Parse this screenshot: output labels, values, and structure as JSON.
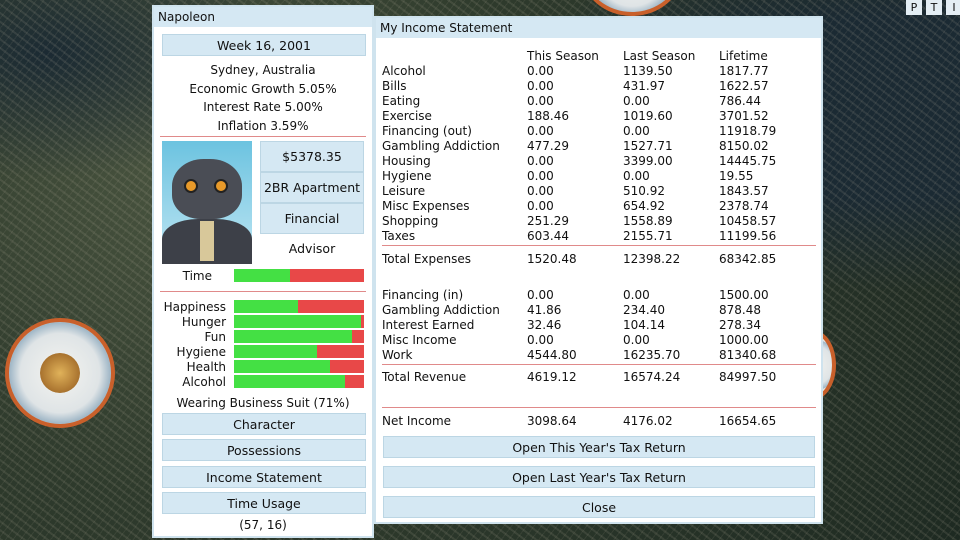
{
  "top_buttons": [
    "P",
    "T",
    "I"
  ],
  "character_panel": {
    "name": "Napoleon",
    "date": "Week 16, 2001",
    "location": "Sydney, Australia",
    "economic_growth": "Economic Growth 5.05%",
    "interest_rate": "Interest Rate 5.00%",
    "inflation": "Inflation 3.59%",
    "money": "$5378.35",
    "housing": "2BR Apartment",
    "job": "Financial Advisor",
    "time": {
      "label": "Time",
      "value": 0.43
    },
    "stats": [
      {
        "label": "Happiness",
        "value": 0.49
      },
      {
        "label": "Hunger",
        "value": 0.98
      },
      {
        "label": "Fun",
        "value": 0.91
      },
      {
        "label": "Hygiene",
        "value": 0.64
      },
      {
        "label": "Health",
        "value": 0.74
      },
      {
        "label": "Alcohol",
        "value": 0.85
      }
    ],
    "clothing": "Wearing Business Suit (71%)",
    "buttons": [
      "Character",
      "Possessions",
      "Income Statement",
      "Time Usage"
    ],
    "coords": "(57, 16)",
    "colors": {
      "bar_fill": "#44e044",
      "bar_empty": "#e84848",
      "panel_header": "#d5e8f3"
    }
  },
  "income_statement": {
    "title": "My Income Statement",
    "columns": [
      "",
      "This Season",
      "Last Season",
      "Lifetime"
    ],
    "expenses": [
      [
        "Alcohol",
        "0.00",
        "1139.50",
        "1817.77"
      ],
      [
        "Bills",
        "0.00",
        "431.97",
        "1622.57"
      ],
      [
        "Eating",
        "0.00",
        "0.00",
        "786.44"
      ],
      [
        "Exercise",
        "188.46",
        "1019.60",
        "3701.52"
      ],
      [
        "Financing (out)",
        "0.00",
        "0.00",
        "11918.79"
      ],
      [
        "Gambling Addiction",
        "477.29",
        "1527.71",
        "8150.02"
      ],
      [
        "Housing",
        "0.00",
        "3399.00",
        "14445.75"
      ],
      [
        "Hygiene",
        "0.00",
        "0.00",
        "19.55"
      ],
      [
        "Leisure",
        "0.00",
        "510.92",
        "1843.57"
      ],
      [
        "Misc Expenses",
        "0.00",
        "654.92",
        "2378.74"
      ],
      [
        "Shopping",
        "251.29",
        "1558.89",
        "10458.57"
      ],
      [
        "Taxes",
        "603.44",
        "2155.71",
        "11199.56"
      ]
    ],
    "total_expenses": [
      "Total Expenses",
      "1520.48",
      "12398.22",
      "68342.85"
    ],
    "revenue": [
      [
        "Financing (in)",
        "0.00",
        "0.00",
        "1500.00"
      ],
      [
        "Gambling Addiction",
        "41.86",
        "234.40",
        "878.48"
      ],
      [
        "Interest Earned",
        "32.46",
        "104.14",
        "278.34"
      ],
      [
        "Misc Income",
        "0.00",
        "0.00",
        "1000.00"
      ],
      [
        "Work",
        "4544.80",
        "16235.70",
        "81340.68"
      ]
    ],
    "total_revenue": [
      "Total Revenue",
      "4619.12",
      "16574.24",
      "84997.50"
    ],
    "net_income": [
      "Net Income",
      "3098.64",
      "4176.02",
      "16654.65"
    ],
    "buttons": [
      "Open This Year's Tax Return",
      "Open Last Year's Tax Return",
      "Close"
    ]
  }
}
